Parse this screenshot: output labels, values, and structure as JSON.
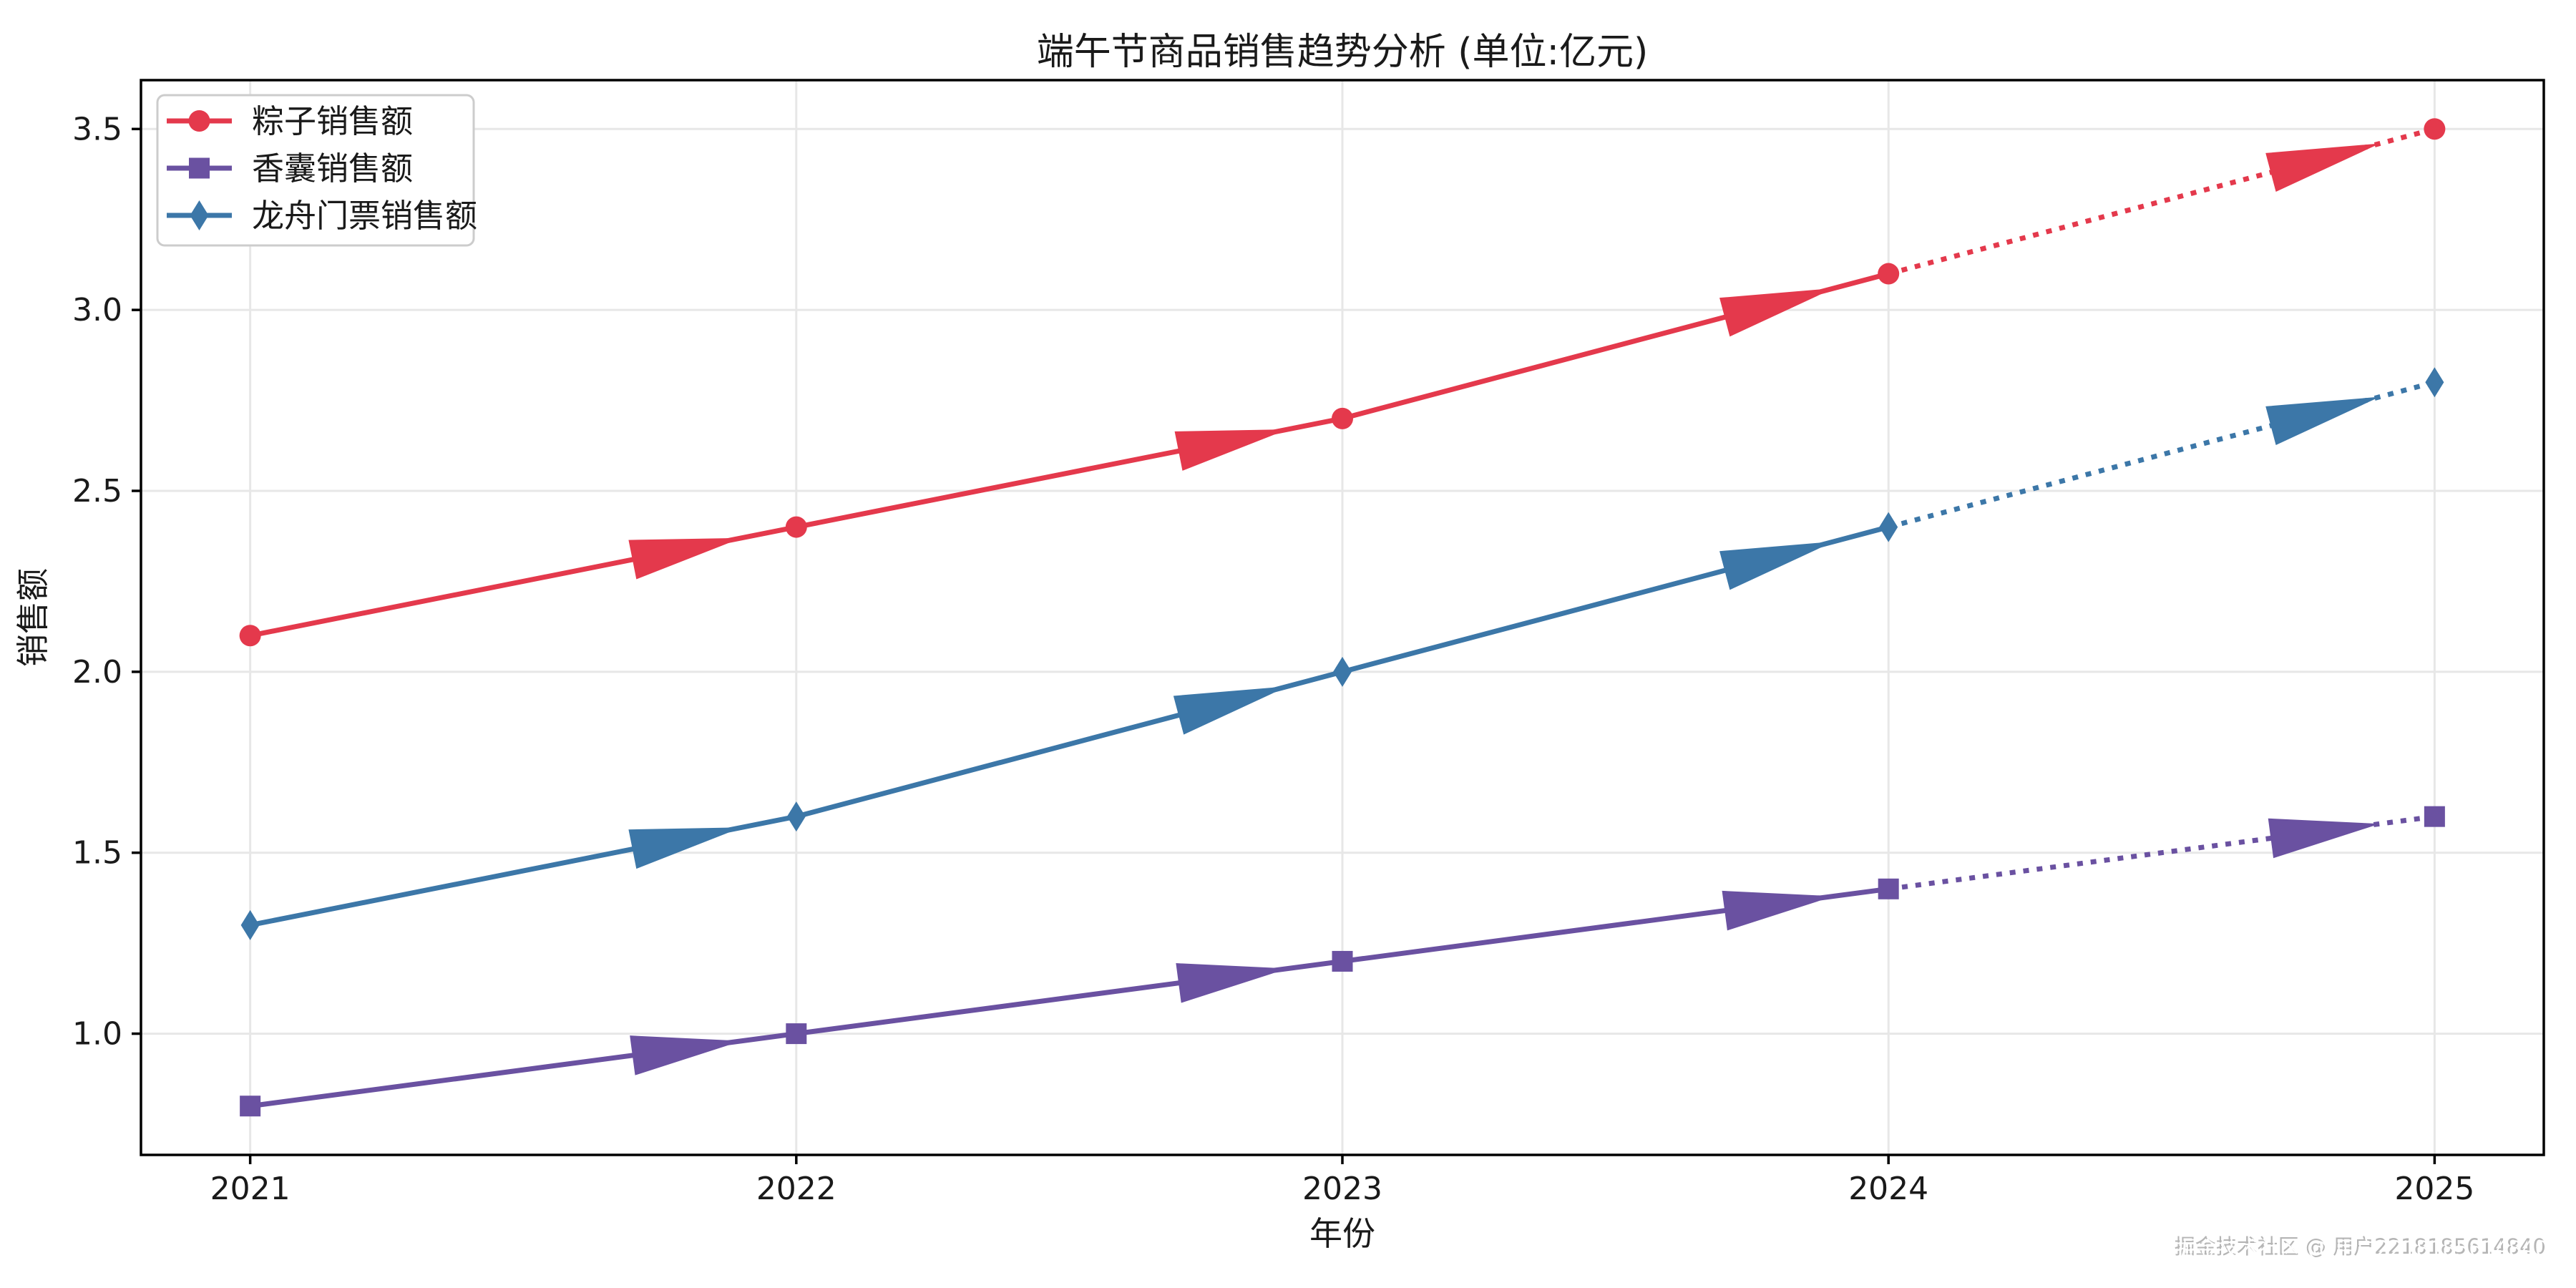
{
  "figure": {
    "background": "#ffffff",
    "text_color": "#1a1a1a",
    "spine_color": "#000000"
  },
  "chart_data": {
    "type": "line",
    "title": "端午节商品销售趋势分析 (单位:亿元)",
    "xlabel": "年份",
    "ylabel": "销售额",
    "x": [
      2021,
      2022,
      2023,
      2024,
      2025
    ],
    "xlim": [
      2020.8,
      2025.2
    ],
    "ylim": [
      0.665,
      3.635
    ],
    "yticks": [
      1.0,
      1.5,
      2.0,
      2.5,
      3.0,
      3.5
    ],
    "grid": true,
    "grid_color": "#e7e7e7",
    "series": [
      {
        "name": "粽子销售额",
        "marker": "circle",
        "color": "#e4394c",
        "values": [
          2.1,
          2.4,
          2.7,
          3.1,
          3.5
        ]
      },
      {
        "name": "香囊销售额",
        "marker": "square",
        "color": "#6a51a1",
        "values": [
          0.8,
          1.0,
          1.2,
          1.4,
          1.6
        ]
      },
      {
        "name": "龙舟门票销售额",
        "marker": "diamond",
        "color": "#3c77a8",
        "values": [
          1.3,
          1.6,
          2.0,
          2.4,
          2.8
        ]
      }
    ],
    "style": {
      "last_segment_dotted": true,
      "segment_direction_arrows": true,
      "legend_position": "upper-left",
      "legend_border_color": "#cccccc"
    }
  },
  "watermark": {
    "text": "掘金技术社区 @ 用户2218185614840"
  }
}
